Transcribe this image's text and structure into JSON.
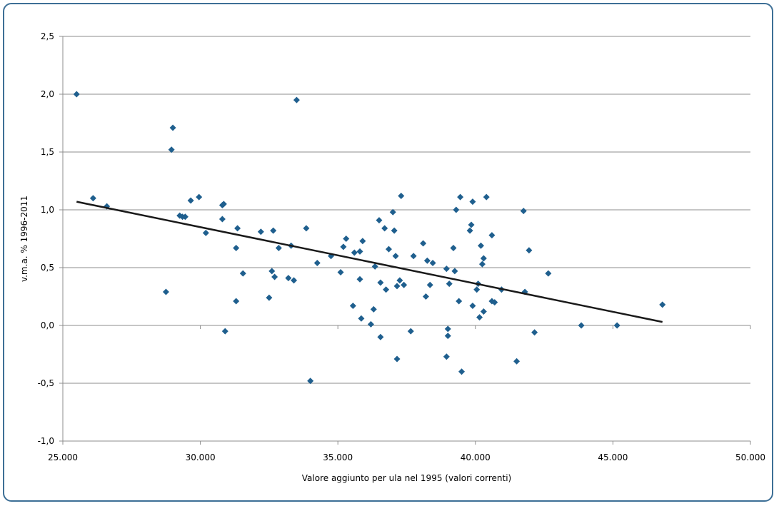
{
  "chart_data": {
    "type": "scatter",
    "title": "",
    "xlabel": "Valore aggiunto per ula nel 1995 (valori correnti)",
    "ylabel": "v.m.a. % 1996-2011",
    "xlim": [
      25000,
      50000
    ],
    "ylim": [
      -1.0,
      2.5
    ],
    "x_ticks": [
      25000,
      30000,
      35000,
      40000,
      45000,
      50000
    ],
    "x_tick_labels": [
      "25.000",
      "30.000",
      "35.000",
      "40.000",
      "45.000",
      "50.000"
    ],
    "y_ticks": [
      -1.0,
      -0.5,
      0.0,
      0.5,
      1.0,
      1.5,
      2.0,
      2.5
    ],
    "y_tick_labels": [
      "-1,0",
      "-0,5",
      "0,0",
      "0,5",
      "1,0",
      "1,5",
      "2,0",
      "2,5"
    ],
    "grid": "horizontal",
    "marker_color": "#1f5f8e",
    "trend_color": "#1a1a1a",
    "trendline": {
      "x": [
        25500,
        46800
      ],
      "y": [
        1.07,
        0.03
      ]
    },
    "points": [
      [
        25500,
        2.0
      ],
      [
        26100,
        1.1
      ],
      [
        26600,
        1.03
      ],
      [
        28750,
        0.29
      ],
      [
        28950,
        1.52
      ],
      [
        29000,
        1.71
      ],
      [
        29250,
        0.95
      ],
      [
        29350,
        0.94
      ],
      [
        29450,
        0.94
      ],
      [
        29650,
        1.08
      ],
      [
        29950,
        1.11
      ],
      [
        30200,
        0.8
      ],
      [
        30800,
        0.92
      ],
      [
        30800,
        1.04
      ],
      [
        30850,
        1.05
      ],
      [
        30900,
        -0.05
      ],
      [
        31300,
        0.21
      ],
      [
        31300,
        0.67
      ],
      [
        31350,
        0.84
      ],
      [
        31550,
        0.45
      ],
      [
        32200,
        0.81
      ],
      [
        32500,
        0.24
      ],
      [
        32600,
        0.47
      ],
      [
        32650,
        0.82
      ],
      [
        32700,
        0.42
      ],
      [
        32850,
        0.67
      ],
      [
        33200,
        0.41
      ],
      [
        33300,
        0.69
      ],
      [
        33400,
        0.39
      ],
      [
        33500,
        1.95
      ],
      [
        33850,
        0.84
      ],
      [
        34000,
        -0.48
      ],
      [
        34250,
        0.54
      ],
      [
        34750,
        0.6
      ],
      [
        35100,
        0.46
      ],
      [
        35200,
        0.68
      ],
      [
        35300,
        0.75
      ],
      [
        35550,
        0.17
      ],
      [
        35600,
        0.63
      ],
      [
        35800,
        0.64
      ],
      [
        35800,
        0.4
      ],
      [
        35850,
        0.06
      ],
      [
        35900,
        0.73
      ],
      [
        36200,
        0.01
      ],
      [
        36300,
        0.14
      ],
      [
        36350,
        0.51
      ],
      [
        36500,
        0.91
      ],
      [
        36550,
        -0.1
      ],
      [
        36550,
        0.37
      ],
      [
        36700,
        0.84
      ],
      [
        36750,
        0.31
      ],
      [
        36850,
        0.66
      ],
      [
        37000,
        0.98
      ],
      [
        37050,
        0.82
      ],
      [
        37100,
        0.6
      ],
      [
        37150,
        0.34
      ],
      [
        37150,
        -0.29
      ],
      [
        37250,
        0.39
      ],
      [
        37300,
        1.12
      ],
      [
        37400,
        0.35
      ],
      [
        37650,
        -0.05
      ],
      [
        37750,
        0.6
      ],
      [
        38100,
        0.71
      ],
      [
        38200,
        0.25
      ],
      [
        38250,
        0.56
      ],
      [
        38350,
        0.35
      ],
      [
        38450,
        0.54
      ],
      [
        38950,
        -0.27
      ],
      [
        38950,
        0.49
      ],
      [
        39000,
        -0.03
      ],
      [
        39000,
        -0.09
      ],
      [
        39050,
        0.36
      ],
      [
        39200,
        0.67
      ],
      [
        39250,
        0.47
      ],
      [
        39300,
        1.0
      ],
      [
        39400,
        0.21
      ],
      [
        39450,
        1.11
      ],
      [
        39500,
        -0.4
      ],
      [
        39800,
        0.82
      ],
      [
        39850,
        0.87
      ],
      [
        39900,
        0.17
      ],
      [
        39900,
        1.07
      ],
      [
        40050,
        0.31
      ],
      [
        40100,
        0.36
      ],
      [
        40150,
        0.07
      ],
      [
        40200,
        0.69
      ],
      [
        40250,
        0.53
      ],
      [
        40300,
        0.58
      ],
      [
        40300,
        0.12
      ],
      [
        40400,
        1.11
      ],
      [
        40600,
        0.21
      ],
      [
        40600,
        0.78
      ],
      [
        40700,
        0.2
      ],
      [
        40950,
        0.31
      ],
      [
        41500,
        -0.31
      ],
      [
        41750,
        0.99
      ],
      [
        41800,
        0.29
      ],
      [
        41950,
        0.65
      ],
      [
        42150,
        -0.06
      ],
      [
        42650,
        0.45
      ],
      [
        43850,
        0.0
      ],
      [
        45150,
        0.0
      ],
      [
        46800,
        0.18
      ]
    ]
  }
}
